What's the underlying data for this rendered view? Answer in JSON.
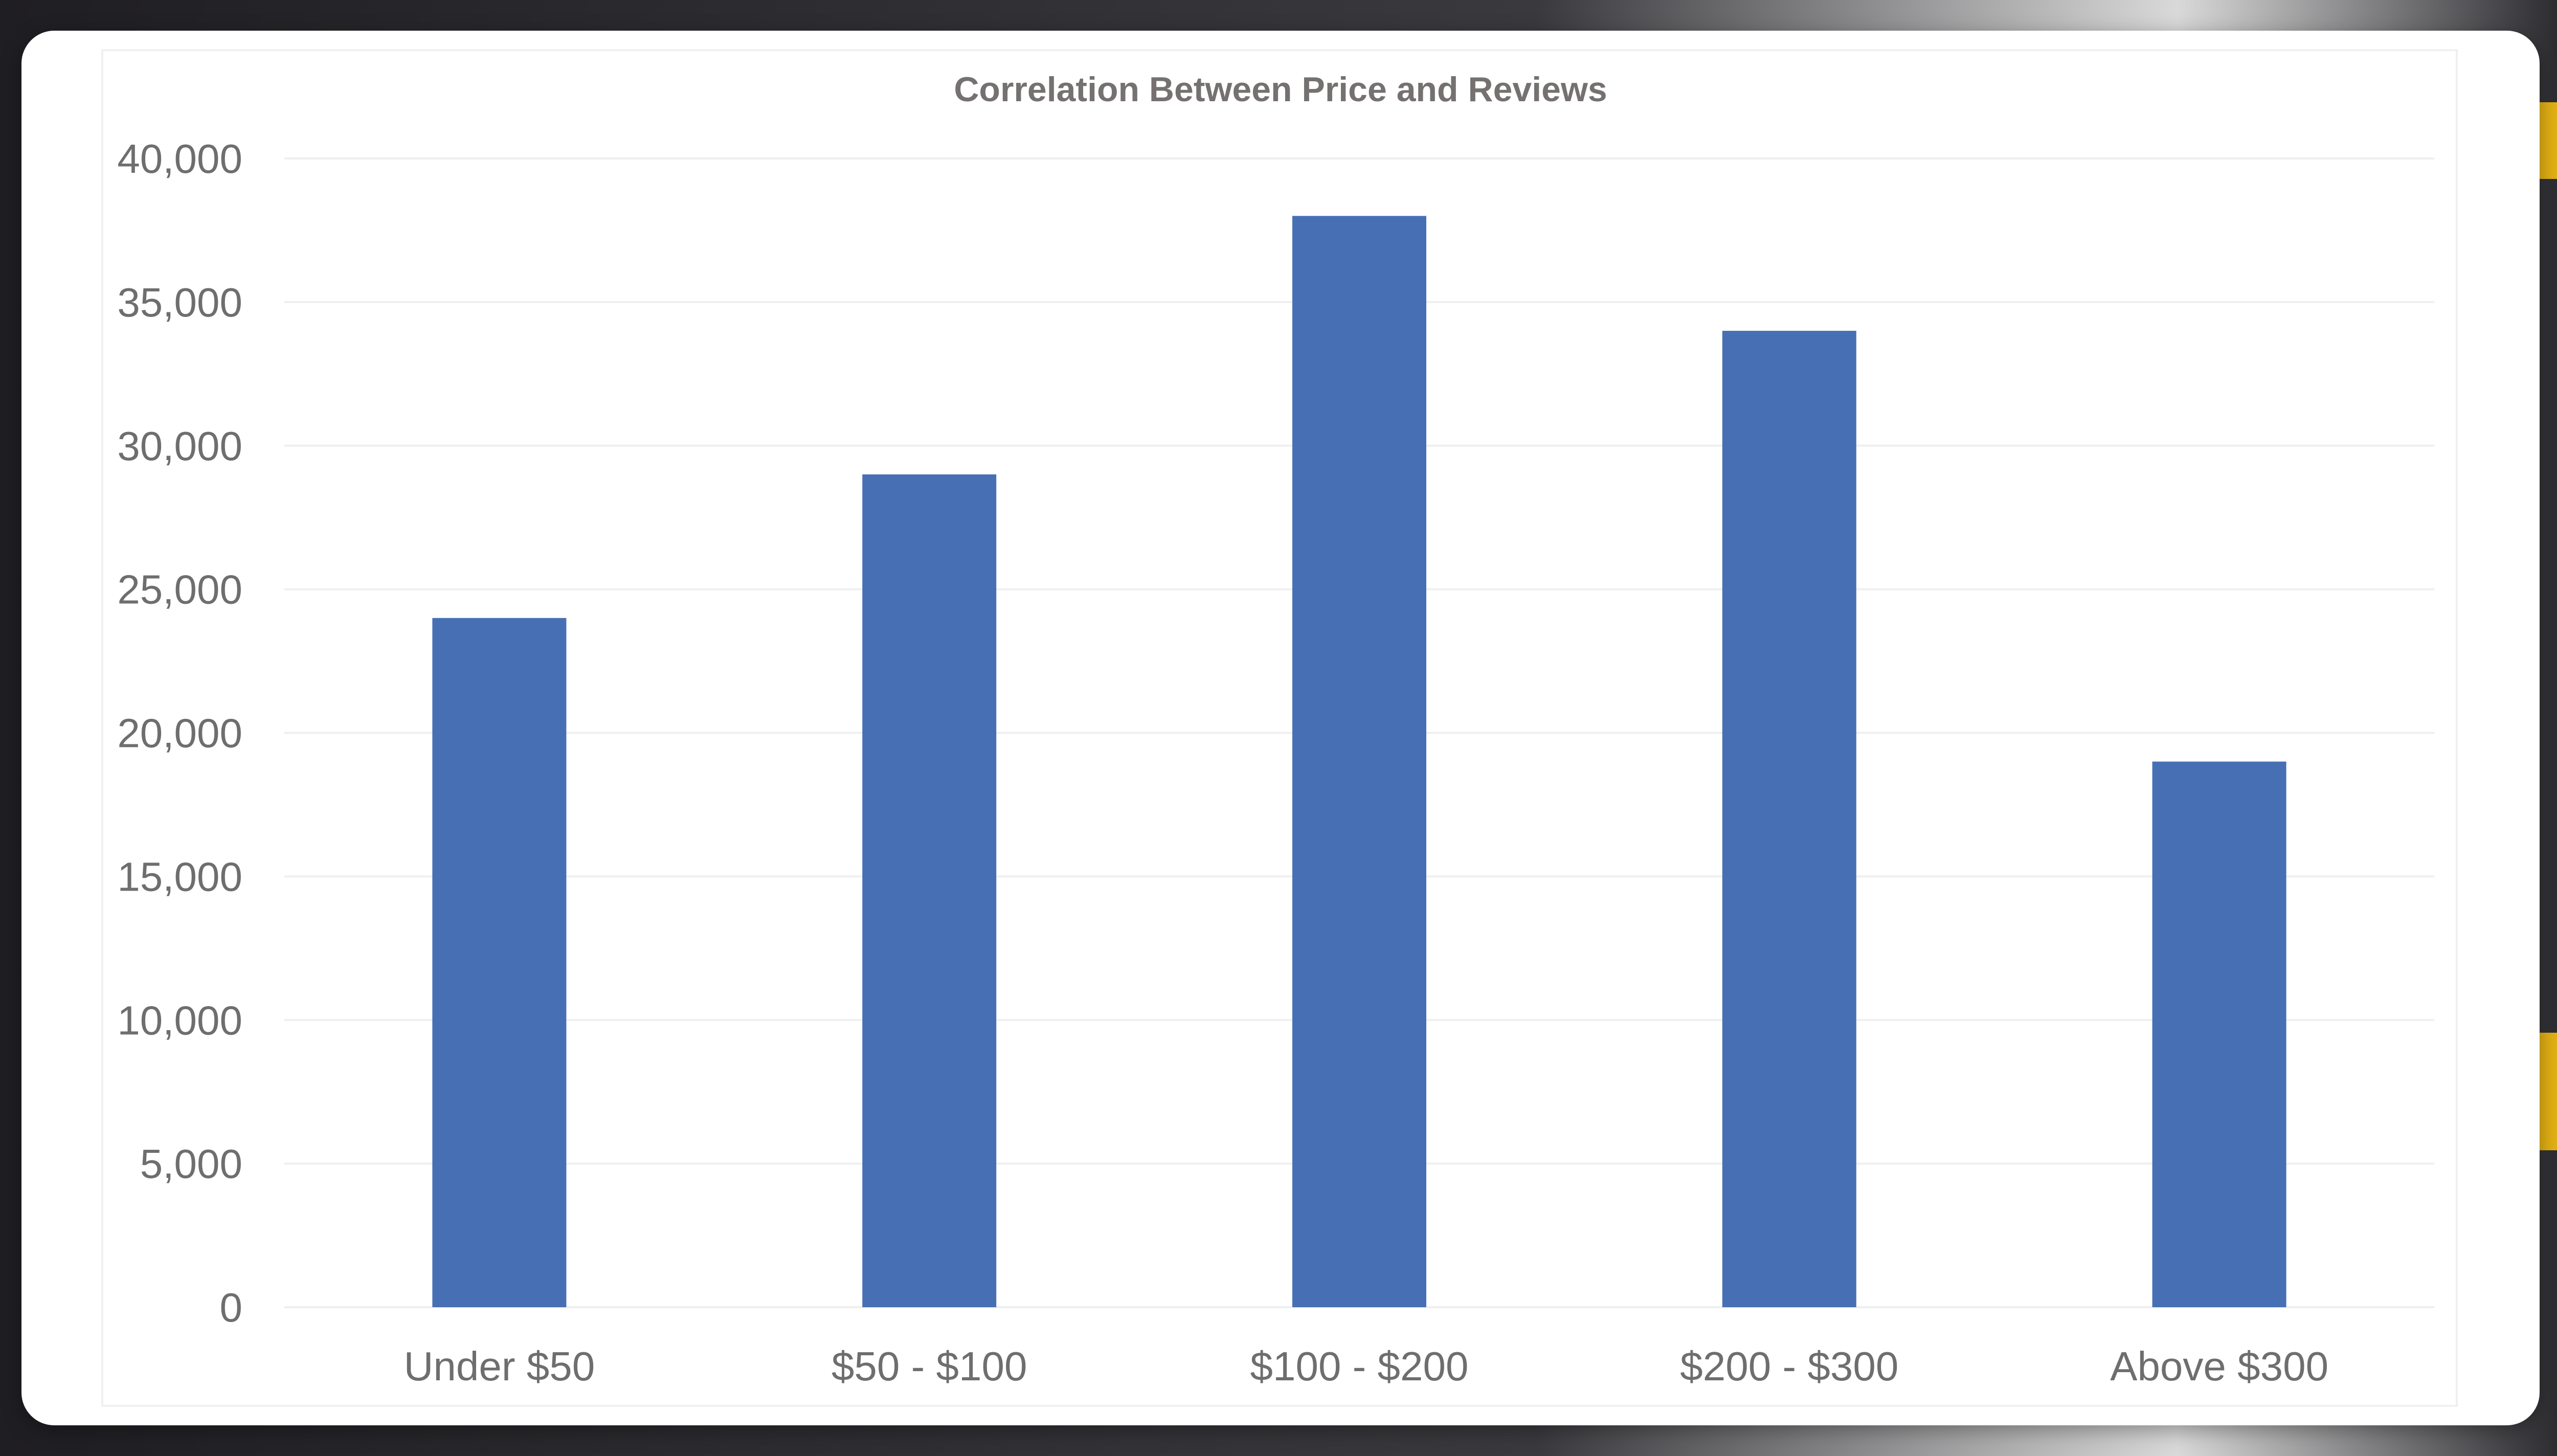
{
  "chart_data": {
    "type": "bar",
    "title": "Correlation Between Price and Reviews",
    "xlabel": "",
    "ylabel": "",
    "categories": [
      "Under $50",
      "$50 - $100",
      "$100 - $200",
      "$200 - $300",
      "Above $300"
    ],
    "values": [
      24000,
      29000,
      38000,
      34000,
      19000
    ],
    "ylim": [
      0,
      40000
    ],
    "yticks": [
      "0",
      "5,000",
      "10,000",
      "15,000",
      "20,000",
      "25,000",
      "30,000",
      "35,000",
      "40,000"
    ],
    "grid": true,
    "legend": "none",
    "bar_color": "#4770b4",
    "grid_color": "#efefef"
  }
}
